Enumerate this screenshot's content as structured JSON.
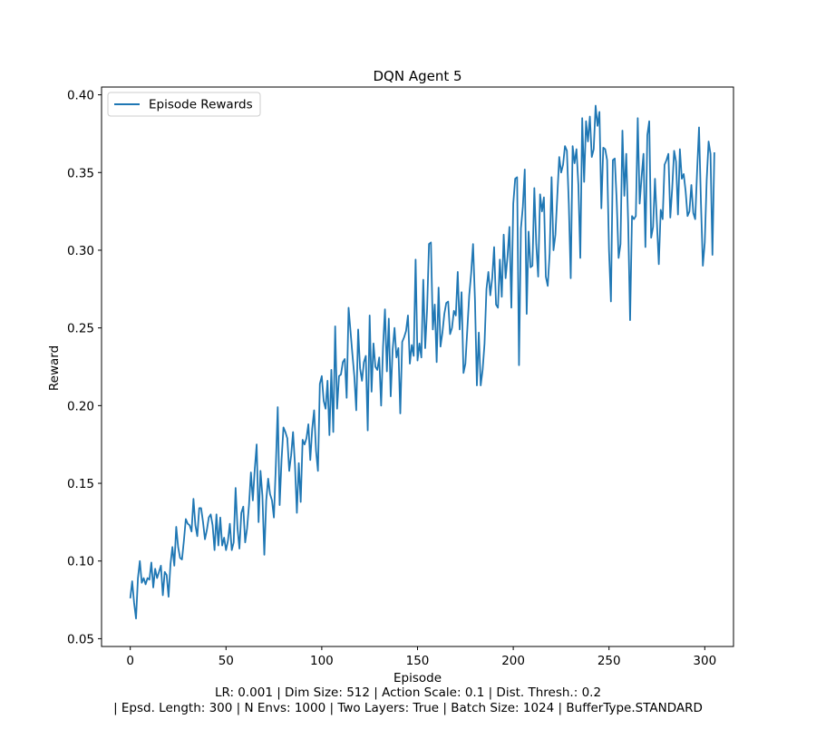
{
  "chart_data": {
    "type": "line",
    "title": "DQN Agent 5",
    "xlabel": "Episode",
    "ylabel": "Reward",
    "xlim": [
      -15,
      315
    ],
    "ylim": [
      0.045,
      0.405
    ],
    "xticks": [
      0,
      50,
      100,
      150,
      200,
      250,
      300
    ],
    "yticks": [
      0.05,
      0.1,
      0.15,
      0.2,
      0.25,
      0.3,
      0.35,
      0.4
    ],
    "xtick_labels": [
      "0",
      "50",
      "100",
      "150",
      "200",
      "250",
      "300"
    ],
    "ytick_labels": [
      "0.05",
      "0.10",
      "0.15",
      "0.20",
      "0.25",
      "0.30",
      "0.35",
      "0.40"
    ],
    "grid": false,
    "legend_position": "top-left",
    "series": [
      {
        "name": "Episode Rewards",
        "color": "#1f77b4",
        "x_start": 0,
        "x_step": 1,
        "values": [
          0.076,
          0.087,
          0.073,
          0.063,
          0.089,
          0.1,
          0.086,
          0.089,
          0.085,
          0.089,
          0.088,
          0.099,
          0.083,
          0.095,
          0.089,
          0.093,
          0.097,
          0.078,
          0.093,
          0.091,
          0.077,
          0.098,
          0.109,
          0.097,
          0.122,
          0.109,
          0.102,
          0.101,
          0.113,
          0.127,
          0.124,
          0.123,
          0.119,
          0.14,
          0.123,
          0.116,
          0.134,
          0.134,
          0.125,
          0.114,
          0.12,
          0.128,
          0.13,
          0.123,
          0.107,
          0.13,
          0.11,
          0.128,
          0.11,
          0.115,
          0.107,
          0.113,
          0.124,
          0.107,
          0.112,
          0.147,
          0.121,
          0.108,
          0.131,
          0.135,
          0.112,
          0.121,
          0.136,
          0.157,
          0.139,
          0.159,
          0.175,
          0.125,
          0.158,
          0.142,
          0.104,
          0.139,
          0.153,
          0.143,
          0.139,
          0.128,
          0.161,
          0.199,
          0.136,
          0.165,
          0.186,
          0.183,
          0.179,
          0.158,
          0.168,
          0.183,
          0.162,
          0.131,
          0.163,
          0.138,
          0.178,
          0.175,
          0.179,
          0.188,
          0.165,
          0.185,
          0.197,
          0.171,
          0.158,
          0.214,
          0.219,
          0.203,
          0.198,
          0.216,
          0.181,
          0.223,
          0.183,
          0.251,
          0.198,
          0.219,
          0.22,
          0.228,
          0.23,
          0.205,
          0.263,
          0.248,
          0.233,
          0.219,
          0.197,
          0.249,
          0.224,
          0.216,
          0.228,
          0.232,
          0.184,
          0.258,
          0.209,
          0.24,
          0.225,
          0.223,
          0.231,
          0.2,
          0.238,
          0.262,
          0.222,
          0.256,
          0.206,
          0.236,
          0.25,
          0.231,
          0.237,
          0.195,
          0.241,
          0.244,
          0.248,
          0.258,
          0.227,
          0.239,
          0.232,
          0.294,
          0.229,
          0.24,
          0.231,
          0.281,
          0.237,
          0.262,
          0.304,
          0.305,
          0.249,
          0.265,
          0.228,
          0.276,
          0.238,
          0.247,
          0.259,
          0.266,
          0.267,
          0.246,
          0.25,
          0.261,
          0.258,
          0.286,
          0.249,
          0.273,
          0.221,
          0.227,
          0.249,
          0.271,
          0.285,
          0.304,
          0.268,
          0.213,
          0.247,
          0.213,
          0.223,
          0.24,
          0.275,
          0.286,
          0.271,
          0.282,
          0.302,
          0.265,
          0.263,
          0.294,
          0.27,
          0.31,
          0.282,
          0.296,
          0.315,
          0.263,
          0.33,
          0.346,
          0.347,
          0.226,
          0.314,
          0.328,
          0.352,
          0.259,
          0.312,
          0.289,
          0.29,
          0.34,
          0.304,
          0.283,
          0.336,
          0.325,
          0.334,
          0.283,
          0.277,
          0.298,
          0.347,
          0.3,
          0.31,
          0.335,
          0.36,
          0.35,
          0.355,
          0.367,
          0.364,
          0.33,
          0.282,
          0.367,
          0.356,
          0.365,
          0.342,
          0.295,
          0.385,
          0.344,
          0.383,
          0.37,
          0.386,
          0.36,
          0.365,
          0.393,
          0.38,
          0.389,
          0.327,
          0.366,
          0.365,
          0.358,
          0.3,
          0.267,
          0.358,
          0.359,
          0.332,
          0.295,
          0.304,
          0.377,
          0.335,
          0.362,
          0.318,
          0.255,
          0.322,
          0.32,
          0.322,
          0.385,
          0.33,
          0.347,
          0.362,
          0.302,
          0.374,
          0.383,
          0.308,
          0.315,
          0.346,
          0.318,
          0.291,
          0.326,
          0.32,
          0.355,
          0.358,
          0.362,
          0.321,
          0.34,
          0.364,
          0.357,
          0.323,
          0.365,
          0.346,
          0.349,
          0.338,
          0.322,
          0.325,
          0.342,
          0.324,
          0.32,
          0.351,
          0.379,
          0.331,
          0.29,
          0.305,
          0.345,
          0.37,
          0.362,
          0.297,
          0.363
        ]
      }
    ]
  },
  "caption": {
    "line1": "LR: 0.001 | Dim Size: 512 | Action Scale: 0.1 | Dist. Thresh.: 0.2",
    "line2": "| Epsd. Length: 300 | N Envs: 1000 | Two Layers: True | Batch Size: 1024 | BufferType.STANDARD"
  }
}
